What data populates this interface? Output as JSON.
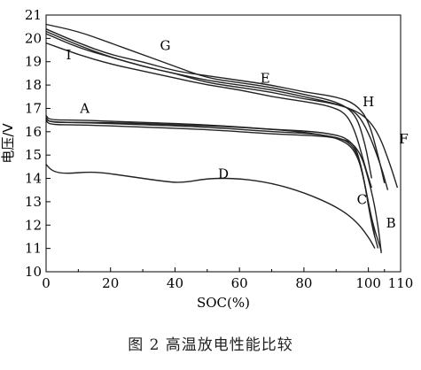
{
  "caption": "图 2    高温放电性能比较",
  "chart_data": {
    "type": "line",
    "xlabel": "SOC(%)",
    "ylabel": "电压/V",
    "xlim": [
      0,
      110
    ],
    "ylim": [
      10,
      21
    ],
    "xticks": [
      0,
      20,
      40,
      60,
      80,
      100,
      110
    ],
    "yticks": [
      10,
      11,
      12,
      13,
      14,
      15,
      16,
      17,
      18,
      19,
      20,
      21
    ],
    "grid": false,
    "series": [
      {
        "name": "A",
        "label_at": [
          12,
          16.8
        ],
        "points": [
          [
            0,
            16.7
          ],
          [
            1,
            16.5
          ],
          [
            10,
            16.5
          ],
          [
            30,
            16.4
          ],
          [
            50,
            16.3
          ],
          [
            70,
            16.1
          ],
          [
            85,
            16.0
          ],
          [
            95,
            15.7
          ],
          [
            98,
            14.5
          ],
          [
            101,
            12.0
          ],
          [
            103,
            11.0
          ]
        ]
      },
      {
        "name": "A",
        "label_at": null,
        "points": [
          [
            0,
            16.6
          ],
          [
            1,
            16.4
          ],
          [
            10,
            16.4
          ],
          [
            30,
            16.3
          ],
          [
            50,
            16.2
          ],
          [
            70,
            16.0
          ],
          [
            85,
            15.9
          ],
          [
            95,
            15.6
          ],
          [
            98,
            14.4
          ],
          [
            101,
            12.2
          ],
          [
            104,
            10.9
          ]
        ]
      },
      {
        "name": "B",
        "label_at": [
          107,
          11.9
        ],
        "points": [
          [
            0,
            16.5
          ],
          [
            1,
            16.3
          ],
          [
            10,
            16.3
          ],
          [
            30,
            16.2
          ],
          [
            50,
            16.1
          ],
          [
            70,
            15.9
          ],
          [
            90,
            15.8
          ],
          [
            97,
            15.4
          ],
          [
            101,
            13.5
          ],
          [
            103,
            12.0
          ],
          [
            104,
            10.8
          ]
        ]
      },
      {
        "name": "C",
        "label_at": [
          98,
          12.9
        ],
        "points": [
          [
            0,
            16.6
          ],
          [
            1,
            16.4
          ],
          [
            20,
            16.4
          ],
          [
            40,
            16.3
          ],
          [
            60,
            16.2
          ],
          [
            80,
            16.0
          ],
          [
            92,
            15.7
          ],
          [
            97,
            15.0
          ],
          [
            100,
            13.0
          ],
          [
            102,
            11.5
          ]
        ]
      },
      {
        "name": "D",
        "label_at": [
          55,
          14.0
        ],
        "points": [
          [
            0,
            14.6
          ],
          [
            2,
            14.3
          ],
          [
            6,
            14.2
          ],
          [
            15,
            14.3
          ],
          [
            25,
            14.1
          ],
          [
            35,
            13.9
          ],
          [
            42,
            13.8
          ],
          [
            50,
            14.0
          ],
          [
            60,
            14.0
          ],
          [
            70,
            13.8
          ],
          [
            80,
            13.4
          ],
          [
            90,
            12.8
          ],
          [
            96,
            12.2
          ],
          [
            100,
            11.5
          ],
          [
            102,
            11.0
          ]
        ]
      },
      {
        "name": "E",
        "label_at": [
          68,
          18.1
        ],
        "points": [
          [
            0,
            20.3
          ],
          [
            10,
            19.7
          ],
          [
            20,
            19.2
          ],
          [
            30,
            18.8
          ],
          [
            40,
            18.5
          ],
          [
            50,
            18.2
          ],
          [
            60,
            18.0
          ],
          [
            70,
            17.8
          ],
          [
            80,
            17.5
          ],
          [
            90,
            17.2
          ],
          [
            96,
            16.9
          ],
          [
            100,
            16.0
          ],
          [
            104,
            14.5
          ],
          [
            106,
            13.5
          ]
        ]
      },
      {
        "name": "F",
        "label_at": [
          111,
          15.5
        ],
        "points": [
          [
            0,
            20.2
          ],
          [
            10,
            19.6
          ],
          [
            20,
            19.2
          ],
          [
            30,
            18.8
          ],
          [
            40,
            18.5
          ],
          [
            50,
            18.1
          ],
          [
            60,
            17.9
          ],
          [
            70,
            17.7
          ],
          [
            80,
            17.4
          ],
          [
            90,
            17.2
          ],
          [
            98,
            16.8
          ],
          [
            103,
            16.0
          ],
          [
            107,
            14.5
          ],
          [
            109,
            13.6
          ]
        ]
      },
      {
        "name": "G",
        "label_at": [
          37,
          19.5
        ],
        "points": [
          [
            0,
            20.6
          ],
          [
            10,
            20.3
          ],
          [
            20,
            19.8
          ],
          [
            30,
            19.3
          ],
          [
            40,
            18.8
          ],
          [
            50,
            18.3
          ],
          [
            60,
            18.1
          ],
          [
            70,
            17.9
          ],
          [
            80,
            17.6
          ],
          [
            90,
            17.3
          ],
          [
            96,
            16.8
          ],
          [
            99,
            15.5
          ],
          [
            101,
            14.0
          ]
        ]
      },
      {
        "name": "H",
        "label_at": [
          100,
          17.1
        ],
        "points": [
          [
            0,
            20.4
          ],
          [
            10,
            19.8
          ],
          [
            20,
            19.3
          ],
          [
            30,
            19.0
          ],
          [
            40,
            18.6
          ],
          [
            50,
            18.4
          ],
          [
            60,
            18.2
          ],
          [
            70,
            18.0
          ],
          [
            80,
            17.7
          ],
          [
            90,
            17.5
          ],
          [
            96,
            17.2
          ],
          [
            100,
            16.5
          ],
          [
            103,
            15.0
          ],
          [
            105,
            13.8
          ]
        ]
      },
      {
        "name": "I",
        "label_at": [
          7,
          19.1
        ],
        "points": [
          [
            0,
            19.8
          ],
          [
            10,
            19.3
          ],
          [
            20,
            18.9
          ],
          [
            30,
            18.6
          ],
          [
            40,
            18.3
          ],
          [
            50,
            18.0
          ],
          [
            60,
            17.8
          ],
          [
            70,
            17.5
          ],
          [
            80,
            17.3
          ],
          [
            88,
            17.1
          ],
          [
            93,
            16.8
          ],
          [
            96,
            16.0
          ],
          [
            99,
            14.5
          ],
          [
            101,
            13.6
          ]
        ]
      }
    ]
  }
}
